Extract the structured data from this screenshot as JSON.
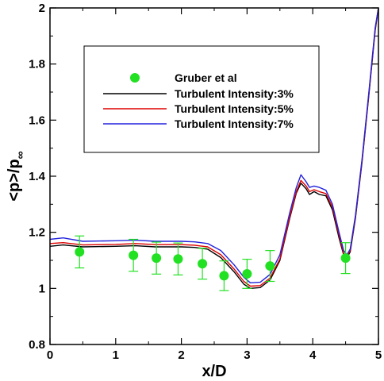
{
  "chart_data": {
    "type": "line",
    "title": "",
    "xlabel": "x/D",
    "ylabel_main": "<p>/p",
    "ylabel_sub": "∞",
    "xlim": [
      0,
      5
    ],
    "ylim": [
      0.8,
      2
    ],
    "xticks": [
      "0",
      "1",
      "2",
      "3",
      "4",
      "5"
    ],
    "yticks": [
      "0.8",
      "1",
      "1.2",
      "1.4",
      "1.6",
      "1.8",
      "2"
    ],
    "legend_position": "upper-center",
    "series": [
      {
        "name": "Gruber et al",
        "kind": "scatter",
        "color": "#22e022",
        "x": [
          0.45,
          1.27,
          1.62,
          1.95,
          2.32,
          2.65,
          3.0,
          3.35,
          4.5
        ],
        "y": [
          1.13,
          1.118,
          1.108,
          1.105,
          1.088,
          1.045,
          1.052,
          1.08,
          1.108
        ],
        "yerr": [
          0.057,
          0.057,
          0.057,
          0.057,
          0.055,
          0.053,
          0.052,
          0.055,
          0.055
        ]
      },
      {
        "name": "Turbulent Intensity:3%",
        "kind": "line",
        "color": "#000000",
        "x": [
          0,
          0.2,
          0.5,
          1.0,
          1.3,
          1.6,
          2.0,
          2.2,
          2.4,
          2.6,
          2.8,
          2.95,
          3.05,
          3.2,
          3.35,
          3.5,
          3.65,
          3.75,
          3.82,
          3.9,
          3.95,
          4.02,
          4.1,
          4.2,
          4.3,
          4.4,
          4.47,
          4.52,
          4.57,
          4.65,
          4.75,
          4.85,
          4.95,
          5.0
        ],
        "y": [
          1.15,
          1.155,
          1.148,
          1.15,
          1.152,
          1.148,
          1.148,
          1.146,
          1.14,
          1.11,
          1.06,
          1.015,
          1.0,
          1.003,
          1.03,
          1.1,
          1.25,
          1.34,
          1.375,
          1.355,
          1.335,
          1.345,
          1.335,
          1.33,
          1.28,
          1.18,
          1.12,
          1.11,
          1.13,
          1.25,
          1.45,
          1.68,
          1.92,
          2.0
        ]
      },
      {
        "name": "Turbulent Intensity:5%",
        "kind": "line",
        "color": "#dd0000",
        "x": [
          0,
          0.2,
          0.5,
          1.0,
          1.3,
          1.6,
          2.0,
          2.2,
          2.4,
          2.6,
          2.8,
          2.95,
          3.05,
          3.2,
          3.35,
          3.5,
          3.65,
          3.75,
          3.82,
          3.9,
          3.95,
          4.02,
          4.1,
          4.2,
          4.3,
          4.4,
          4.47,
          4.52,
          4.57,
          4.65,
          4.75,
          4.85,
          4.95,
          5.0
        ],
        "y": [
          1.16,
          1.163,
          1.155,
          1.157,
          1.16,
          1.156,
          1.156,
          1.154,
          1.148,
          1.12,
          1.07,
          1.025,
          1.008,
          1.01,
          1.037,
          1.105,
          1.255,
          1.345,
          1.385,
          1.365,
          1.345,
          1.352,
          1.345,
          1.338,
          1.29,
          1.19,
          1.125,
          1.115,
          1.135,
          1.255,
          1.455,
          1.685,
          1.925,
          2.0
        ]
      },
      {
        "name": "Turbulent Intensity:7%",
        "kind": "line",
        "color": "#2222dd",
        "x": [
          0,
          0.2,
          0.5,
          1.0,
          1.3,
          1.6,
          2.0,
          2.2,
          2.4,
          2.6,
          2.8,
          2.95,
          3.05,
          3.2,
          3.35,
          3.5,
          3.65,
          3.75,
          3.82,
          3.9,
          3.95,
          4.02,
          4.1,
          4.2,
          4.3,
          4.4,
          4.47,
          4.52,
          4.57,
          4.65,
          4.75,
          4.85,
          4.95,
          5.0
        ],
        "y": [
          1.175,
          1.18,
          1.168,
          1.17,
          1.172,
          1.168,
          1.168,
          1.166,
          1.16,
          1.135,
          1.085,
          1.04,
          1.02,
          1.022,
          1.05,
          1.12,
          1.27,
          1.36,
          1.405,
          1.38,
          1.36,
          1.365,
          1.36,
          1.35,
          1.3,
          1.2,
          1.135,
          1.12,
          1.14,
          1.26,
          1.46,
          1.69,
          1.93,
          2.0
        ]
      }
    ]
  }
}
